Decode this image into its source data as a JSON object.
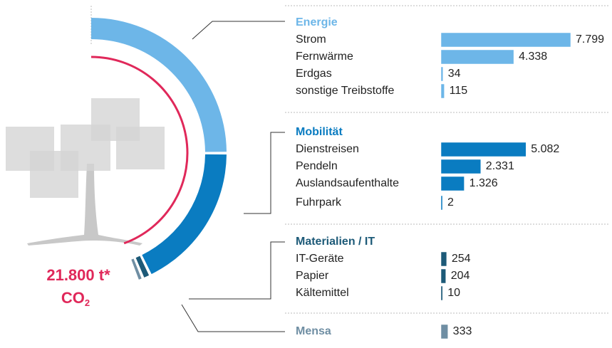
{
  "chart_data": {
    "type": "bar",
    "total_label": "21.800 t*",
    "unit_label": "CO",
    "unit_sub": "2",
    "series": [
      {
        "name": "Energie",
        "color": "#6db6e8",
        "categories": [
          "Strom",
          "Fernwärme",
          "Erdgas",
          "sonstige Treibstoffe"
        ],
        "values": [
          7799,
          4338,
          34,
          115
        ],
        "value_labels": [
          "7.799",
          "4.338",
          "34",
          "115"
        ]
      },
      {
        "name": "Mobilität",
        "color": "#0a7cc1",
        "categories": [
          "Dienstreisen",
          "Pendeln",
          "Auslandsaufenthalte",
          "Fuhrpark"
        ],
        "values": [
          5082,
          2331,
          1326,
          2
        ],
        "value_labels": [
          "5.082",
          "2.331",
          "1.326",
          "2"
        ]
      },
      {
        "name": "Materialien / IT",
        "color": "#1d5a78",
        "categories": [
          "IT-Geräte",
          "Papier",
          "Kältemittel"
        ],
        "values": [
          254,
          204,
          10
        ],
        "value_labels": [
          "254",
          "204",
          "10"
        ]
      },
      {
        "name": "Mensa",
        "color": "#6f8ea3",
        "categories": [
          null
        ],
        "values": [
          333
        ],
        "value_labels": [
          "333"
        ]
      }
    ]
  }
}
